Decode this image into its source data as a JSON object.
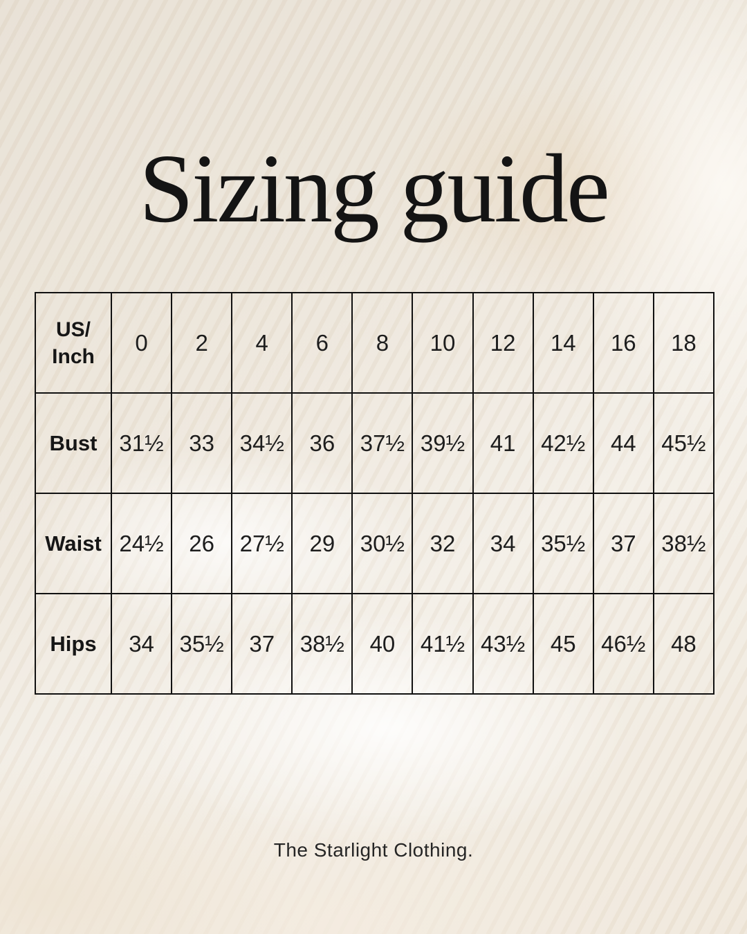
{
  "page": {
    "title": "Sizing guide",
    "footer": "The Starlight Clothing."
  },
  "table": {
    "corner_line1": "US/",
    "corner_line2": "Inch",
    "sizes": [
      "0",
      "2",
      "4",
      "6",
      "8",
      "10",
      "12",
      "14",
      "16",
      "18"
    ],
    "rows": [
      {
        "label": "Bust",
        "values": [
          "31½",
          "33",
          "34½",
          "36",
          "37½",
          "39½",
          "41",
          "42½",
          "44",
          "45½"
        ]
      },
      {
        "label": "Waist",
        "values": [
          "24½",
          "26",
          "27½",
          "29",
          "30½",
          "32",
          "34",
          "35½",
          "37",
          "38½"
        ]
      },
      {
        "label": "Hips",
        "values": [
          "34",
          "35½",
          "37",
          "38½",
          "40",
          "41½",
          "43½",
          "45",
          "46½",
          "48"
        ]
      }
    ]
  },
  "colors": {
    "background_base": "#efe8dd",
    "background_light": "#f6f2eb",
    "background_tan": "#e2c9a6",
    "table_border": "#111111",
    "text": "#1c1c1c"
  }
}
